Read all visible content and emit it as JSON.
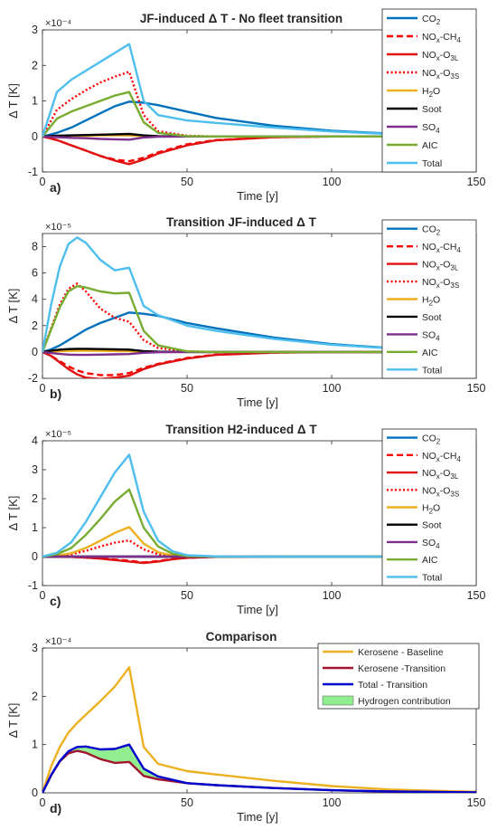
{
  "chart_data": [
    {
      "type": "line",
      "panel_label": "a)",
      "title": "JF-induced Δ T - No fleet transition",
      "xlabel": "Time [y]",
      "ylabel": "Δ T [K]",
      "y_exponent": "×10⁻⁴",
      "xlim": [
        0,
        150
      ],
      "ylim": [
        -1,
        3
      ],
      "xticks": [
        "0",
        "50",
        "100",
        "150"
      ],
      "yticks": [
        "-1",
        "0",
        "1",
        "2",
        "3"
      ],
      "legend_position": "top-right",
      "x": [
        0,
        5,
        10,
        15,
        20,
        25,
        30,
        35,
        40,
        50,
        60,
        80,
        100,
        120
      ],
      "series": [
        {
          "name": "CO2",
          "sub": "2",
          "color": "#0072BD",
          "dash": "solid",
          "values": [
            0,
            0.1,
            0.25,
            0.45,
            0.65,
            0.85,
            0.98,
            0.95,
            0.88,
            0.7,
            0.52,
            0.3,
            0.16,
            0.08
          ]
        },
        {
          "name": "NOx-CH4",
          "sub": "x",
          "sub2": "4",
          "color": "#FF0000",
          "dash": "dashed",
          "values": [
            0,
            -0.1,
            -0.25,
            -0.4,
            -0.55,
            -0.65,
            -0.7,
            -0.6,
            -0.45,
            -0.22,
            -0.1,
            -0.02,
            0,
            0
          ]
        },
        {
          "name": "NOx-O3L",
          "sub": "x",
          "sub2": "3L",
          "color": "#E01010",
          "dash": "solid",
          "values": [
            0,
            -0.1,
            -0.25,
            -0.4,
            -0.55,
            -0.68,
            -0.78,
            -0.65,
            -0.48,
            -0.25,
            -0.11,
            -0.02,
            0,
            0
          ]
        },
        {
          "name": "NOx-O3S",
          "sub": "x",
          "sub2": "3S",
          "color": "#FF0000",
          "dash": "dotted",
          "values": [
            0,
            0.75,
            1.05,
            1.3,
            1.52,
            1.68,
            1.82,
            0.6,
            0.15,
            0.02,
            0,
            0,
            0,
            0
          ]
        },
        {
          "name": "H2O",
          "sub": "2",
          "color": "#EDB120",
          "dash": "solid",
          "values": [
            0,
            0.01,
            0.02,
            0.02,
            0.03,
            0.03,
            0.03,
            0.01,
            0,
            0,
            0,
            0,
            0,
            0
          ]
        },
        {
          "name": "Soot",
          "color": "#000000",
          "dash": "solid",
          "values": [
            0,
            0.02,
            0.03,
            0.04,
            0.05,
            0.06,
            0.07,
            0.03,
            0.01,
            0,
            0,
            0,
            0,
            0
          ]
        },
        {
          "name": "SO4",
          "sub": "4",
          "color": "#7E2F8E",
          "dash": "solid",
          "values": [
            0,
            -0.02,
            -0.04,
            -0.05,
            -0.07,
            -0.08,
            -0.09,
            -0.03,
            -0.01,
            0,
            0,
            0,
            0,
            0
          ]
        },
        {
          "name": "AIC",
          "color": "#77AC30",
          "dash": "solid",
          "values": [
            0,
            0.5,
            0.7,
            0.85,
            1.0,
            1.15,
            1.25,
            0.4,
            0.1,
            0.01,
            0,
            0,
            0,
            0
          ]
        },
        {
          "name": "Total",
          "color": "#4DBEEE",
          "dash": "solid",
          "values": [
            0,
            1.25,
            1.6,
            1.85,
            2.1,
            2.35,
            2.6,
            1.0,
            0.6,
            0.45,
            0.38,
            0.25,
            0.14,
            0.07
          ]
        }
      ]
    },
    {
      "type": "line",
      "panel_label": "b)",
      "title": "Transition JF-induced Δ T",
      "xlabel": "Time [y]",
      "ylabel": "Δ T [K]",
      "y_exponent": "×10⁻⁵",
      "xlim": [
        0,
        150
      ],
      "ylim": [
        -2,
        9
      ],
      "xticks": [
        "0",
        "50",
        "100",
        "150"
      ],
      "yticks": [
        "-2",
        "0",
        "2",
        "4",
        "6",
        "8"
      ],
      "legend_position": "top-right",
      "x": [
        0,
        3,
        6,
        9,
        12,
        15,
        20,
        25,
        30,
        35,
        40,
        50,
        60,
        80,
        100,
        120
      ],
      "series": [
        {
          "name": "CO2",
          "sub": "2",
          "color": "#0072BD",
          "dash": "solid",
          "values": [
            0,
            0.2,
            0.5,
            0.9,
            1.3,
            1.7,
            2.2,
            2.6,
            3.0,
            2.9,
            2.75,
            2.2,
            1.8,
            1.1,
            0.6,
            0.3
          ]
        },
        {
          "name": "NOx-CH4",
          "sub": "x",
          "sub2": "4",
          "color": "#FF0000",
          "dash": "dashed",
          "values": [
            0,
            -0.3,
            -0.7,
            -1.1,
            -1.4,
            -1.6,
            -1.75,
            -1.75,
            -1.6,
            -1.2,
            -0.9,
            -0.45,
            -0.2,
            -0.05,
            0,
            0
          ]
        },
        {
          "name": "NOx-O3L",
          "sub": "x",
          "sub2": "3L",
          "color": "#E01010",
          "dash": "solid",
          "values": [
            0,
            -0.3,
            -0.8,
            -1.3,
            -1.7,
            -1.95,
            -2.05,
            -1.95,
            -1.8,
            -1.3,
            -0.95,
            -0.5,
            -0.22,
            -0.05,
            0,
            0
          ]
        },
        {
          "name": "NOx-O3S",
          "sub": "x",
          "sub2": "3S",
          "color": "#FF0000",
          "dash": "dotted",
          "values": [
            0,
            1.8,
            3.6,
            4.8,
            5.2,
            4.6,
            3.3,
            2.6,
            2.3,
            0.9,
            0.3,
            0.05,
            0,
            0,
            0,
            0
          ]
        },
        {
          "name": "H2O",
          "sub": "2",
          "color": "#EDB120",
          "dash": "solid",
          "values": [
            0,
            0.03,
            0.06,
            0.08,
            0.09,
            0.09,
            0.08,
            0.07,
            0.06,
            0.02,
            0.01,
            0,
            0,
            0,
            0,
            0
          ]
        },
        {
          "name": "Soot",
          "color": "#000000",
          "dash": "solid",
          "values": [
            0,
            0.1,
            0.18,
            0.22,
            0.24,
            0.24,
            0.22,
            0.2,
            0.18,
            0.07,
            0.02,
            0,
            0,
            0,
            0,
            0
          ]
        },
        {
          "name": "SO4",
          "sub": "4",
          "color": "#7E2F8E",
          "dash": "solid",
          "values": [
            0,
            -0.08,
            -0.15,
            -0.2,
            -0.22,
            -0.22,
            -0.2,
            -0.18,
            -0.16,
            -0.06,
            -0.02,
            0,
            0,
            0,
            0,
            0
          ]
        },
        {
          "name": "AIC",
          "color": "#77AC30",
          "dash": "solid",
          "values": [
            0,
            1.7,
            3.4,
            4.6,
            5.0,
            4.9,
            4.6,
            4.45,
            4.5,
            1.6,
            0.5,
            0.05,
            0,
            0,
            0,
            0
          ]
        },
        {
          "name": "Total",
          "color": "#4DBEEE",
          "dash": "solid",
          "values": [
            0,
            3.6,
            6.5,
            8.2,
            8.7,
            8.3,
            7.0,
            6.2,
            6.4,
            3.5,
            2.8,
            2.0,
            1.6,
            1.0,
            0.55,
            0.28
          ]
        }
      ]
    },
    {
      "type": "line",
      "panel_label": "c)",
      "title": "Transition H2-induced Δ T",
      "xlabel": "Time [y]",
      "ylabel": "Δ T [K]",
      "y_exponent": "×10⁻⁵",
      "xlim": [
        0,
        150
      ],
      "ylim": [
        -1,
        4
      ],
      "xticks": [
        "0",
        "50",
        "100",
        "150"
      ],
      "yticks": [
        "-1",
        "0",
        "1",
        "2",
        "3",
        "4"
      ],
      "legend_position": "top-right",
      "x": [
        0,
        5,
        10,
        15,
        20,
        25,
        30,
        35,
        40,
        45,
        50,
        60,
        80,
        100,
        120
      ],
      "series": [
        {
          "name": "CO2",
          "sub": "2",
          "color": "#0072BD",
          "dash": "solid",
          "values": [
            0,
            0,
            0,
            0,
            0,
            0,
            0,
            0,
            0,
            0,
            0,
            0,
            0,
            0,
            0
          ]
        },
        {
          "name": "NOx-CH4",
          "sub": "x",
          "sub2": "4",
          "color": "#FF0000",
          "dash": "dashed",
          "values": [
            0,
            0,
            -0.01,
            -0.03,
            -0.06,
            -0.1,
            -0.14,
            -0.2,
            -0.15,
            -0.08,
            -0.04,
            -0.01,
            0,
            0,
            0
          ]
        },
        {
          "name": "NOx-O3L",
          "sub": "x",
          "sub2": "3L",
          "color": "#E01010",
          "dash": "solid",
          "values": [
            0,
            0,
            -0.01,
            -0.03,
            -0.07,
            -0.12,
            -0.17,
            -0.22,
            -0.17,
            -0.09,
            -0.04,
            -0.01,
            0,
            0,
            0
          ]
        },
        {
          "name": "NOx-O3S",
          "sub": "x",
          "sub2": "3S",
          "color": "#FF0000",
          "dash": "dotted",
          "values": [
            0,
            0.02,
            0.08,
            0.2,
            0.35,
            0.48,
            0.56,
            0.25,
            0.08,
            0.02,
            0,
            0,
            0,
            0,
            0
          ]
        },
        {
          "name": "H2O",
          "sub": "2",
          "color": "#EDB120",
          "dash": "solid",
          "values": [
            0,
            0.03,
            0.12,
            0.3,
            0.55,
            0.82,
            1.02,
            0.45,
            0.15,
            0.04,
            0.01,
            0,
            0,
            0,
            0
          ]
        },
        {
          "name": "Soot",
          "color": "#000000",
          "dash": "solid",
          "values": [
            0,
            0,
            0,
            0,
            0,
            0,
            0,
            0,
            0,
            0,
            0,
            0,
            0,
            0,
            0
          ]
        },
        {
          "name": "SO4",
          "sub": "4",
          "color": "#7E2F8E",
          "dash": "solid",
          "values": [
            0,
            0,
            0,
            0,
            0,
            0,
            0,
            0,
            0,
            0,
            0,
            0,
            0,
            0,
            0
          ]
        },
        {
          "name": "AIC",
          "color": "#77AC30",
          "dash": "solid",
          "values": [
            0,
            0.08,
            0.3,
            0.75,
            1.3,
            1.9,
            2.32,
            1.0,
            0.35,
            0.1,
            0.02,
            0,
            0,
            0,
            0
          ]
        },
        {
          "name": "Total",
          "color": "#4DBEEE",
          "dash": "solid",
          "values": [
            0,
            0.13,
            0.5,
            1.2,
            2.05,
            2.9,
            3.52,
            1.55,
            0.55,
            0.18,
            0.05,
            0.01,
            0,
            0,
            0
          ]
        }
      ]
    },
    {
      "type": "line",
      "panel_label": "d)",
      "title": "Comparison",
      "xlabel": "Time [y]",
      "ylabel": "Δ T [K]",
      "y_exponent": "×10⁻⁴",
      "xlim": [
        0,
        150
      ],
      "ylim": [
        0,
        3
      ],
      "xticks": [
        "0",
        "50",
        "100",
        "150"
      ],
      "yticks": [
        "0",
        "1",
        "2",
        "3"
      ],
      "legend_position": "top-right",
      "x": [
        0,
        3,
        6,
        9,
        12,
        15,
        20,
        25,
        30,
        35,
        40,
        50,
        60,
        80,
        100,
        120,
        150
      ],
      "series": [
        {
          "name": "Kerosene - Baseline",
          "color": "#EDB120",
          "dash": "solid",
          "values": [
            0,
            0.55,
            0.95,
            1.25,
            1.45,
            1.62,
            1.9,
            2.2,
            2.6,
            0.95,
            0.6,
            0.45,
            0.38,
            0.25,
            0.14,
            0.07,
            0.02
          ]
        },
        {
          "name": "Kerosene -Transition",
          "color": "#A2142F",
          "dash": "solid",
          "values": [
            0,
            0.36,
            0.65,
            0.82,
            0.87,
            0.83,
            0.7,
            0.62,
            0.64,
            0.35,
            0.28,
            0.2,
            0.16,
            0.1,
            0.055,
            0.028,
            0.01
          ]
        },
        {
          "name": "Total - Transition",
          "color": "#0000CC",
          "dash": "solid",
          "values": [
            0,
            0.37,
            0.66,
            0.86,
            0.95,
            0.96,
            0.9,
            0.91,
            1.0,
            0.5,
            0.34,
            0.2,
            0.16,
            0.1,
            0.055,
            0.028,
            0.01
          ]
        }
      ],
      "fill": {
        "name": "Hydrogen contribution",
        "color": "#90EE90",
        "between": [
          "Kerosene -Transition",
          "Total - Transition"
        ]
      }
    }
  ]
}
